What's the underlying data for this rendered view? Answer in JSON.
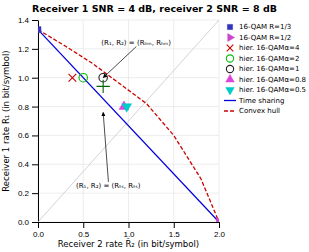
{
  "chart_data": {
    "type": "scatter",
    "title": "Receiver 1 SNR = 4 dB, receiver 2 SNR = 8 dB",
    "x_label": "Receiver 2 rate R̂₂ (in bit/symbol)",
    "y_label": "Receiver 1 rate R₁ (in bit/symbol)",
    "xlim": [
      0,
      2
    ],
    "ylim": [
      0,
      1.4
    ],
    "xticks": [
      {
        "value": 0,
        "label": "0.0"
      },
      0.5,
      {
        "value": 1,
        "label": "1.0"
      },
      1.5,
      {
        "value": 2,
        "label": "2.0"
      }
    ],
    "yticks": [
      {
        "value": 0,
        "label": "0.0"
      },
      0.2,
      0.4,
      0.6,
      0.8,
      {
        "value": 1.0,
        "label": "1.0"
      },
      1.2,
      1.4
    ],
    "grid": true,
    "legend": "right",
    "series": [
      {
        "type": "line",
        "color": "#c8c8c8",
        "line_style": "solid",
        "x": [
          0,
          2
        ],
        "values": [
          0,
          1.4
        ]
      },
      {
        "name": "Time sharing",
        "type": "line",
        "color": "#0000dd",
        "line_style": "solid",
        "x": [
          0,
          2
        ],
        "values": [
          1.3333,
          0
        ]
      },
      {
        "name": "Convex hull",
        "type": "line",
        "color": "#cc0000",
        "line_style": "dashed",
        "x": [
          0.0,
          0.3,
          0.6,
          0.9,
          1.2,
          1.5,
          1.8,
          2.0
        ],
        "values": [
          1.3333,
          1.22,
          1.1,
          0.96,
          0.82,
          0.6,
          0.3,
          0.0
        ]
      },
      {
        "name": "16-QAM R=1/3",
        "type": "scatter",
        "marker": "square",
        "color": "#3333bb",
        "x": [
          0.0
        ],
        "values": [
          1.3333
        ]
      },
      {
        "name": "16-QAM R=1/2",
        "type": "scatter",
        "marker": "triangle-right",
        "color": "#cc44cc",
        "x": [
          2.0
        ],
        "values": [
          0.0
        ]
      },
      {
        "name": "hier. 16-QAMα=4",
        "type": "scatter",
        "marker": "x",
        "color": "#cc0000",
        "x": [
          0.38
        ],
        "values": [
          1.0
        ]
      },
      {
        "name": "hier. 16-QAMα=2",
        "type": "scatter",
        "marker": "circle-open",
        "color": "#00bb00",
        "x": [
          0.5
        ],
        "values": [
          1.0
        ]
      },
      {
        "name": "hier. 16-QAMα=1",
        "type": "scatter",
        "marker": "circle-open",
        "color": "#222222",
        "x": [
          0.72
        ],
        "values": [
          1.0
        ]
      },
      {
        "name": "hier. 16-QAMα=0.8",
        "type": "scatter",
        "marker": "triangle-up",
        "color": "#dd44dd",
        "x": [
          0.95
        ],
        "values": [
          0.8
        ]
      },
      {
        "name": "hier. 16-QAMα=0.5",
        "type": "scatter",
        "marker": "triangle-down",
        "color": "#00cccc",
        "x": [
          0.98
        ],
        "values": [
          0.8
        ]
      },
      {
        "type": "scatter",
        "marker": "plus",
        "color": "#006600",
        "x": [
          0.72
        ],
        "values": [
          0.94
        ]
      }
    ],
    "annotations": [
      {
        "text": "(R₁, R₂) = (Rₕₘ, Rₕₘ)",
        "x": 0.72,
        "y": 1.0,
        "text_x": 0.7,
        "text_y": 1.22
      },
      {
        "text": "(R₁, R₂) = (Rₜₛ, Rₜₛ)",
        "x": 0.72,
        "y": 0.76,
        "text_x": 0.42,
        "text_y": 0.28
      }
    ]
  }
}
